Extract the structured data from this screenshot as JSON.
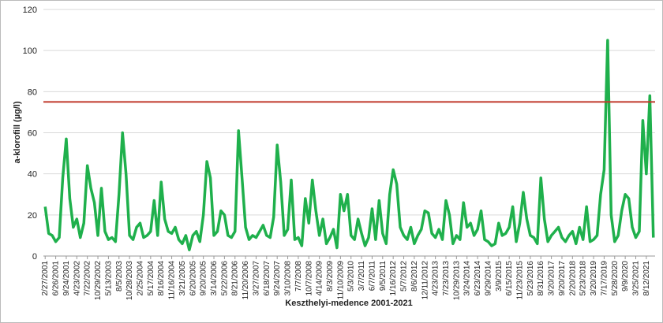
{
  "chart_data": {
    "type": "line",
    "ylabel": "a-klorofill (µg/l)",
    "xlabel": "Keszthelyi-medence 2001-2021",
    "ylim": [
      0,
      120
    ],
    "yticks": [
      0,
      20,
      40,
      60,
      80,
      100,
      120
    ],
    "grid": true,
    "threshold": 75,
    "threshold_color": "#c0392b",
    "categories": [
      "2/27/2001",
      null,
      null,
      "6/26/2001",
      null,
      null,
      "9/24/2001",
      null,
      null,
      "4/23/2002",
      null,
      null,
      "7/22/2002",
      null,
      null,
      "10/29/2002",
      null,
      null,
      "5/13/2003",
      null,
      null,
      "8/5/2003",
      null,
      null,
      "10/28/2003",
      null,
      null,
      "2/25/2004",
      null,
      null,
      "5/17/2004",
      null,
      null,
      "8/16/2004",
      null,
      null,
      "11/16/2004",
      null,
      null,
      "3/21/2005",
      null,
      null,
      "6/20/2005",
      null,
      null,
      "9/20/2005",
      null,
      null,
      "3/14/2006",
      null,
      null,
      "5/22/2006",
      null,
      null,
      "8/21/2006",
      null,
      null,
      "11/20/2006",
      null,
      null,
      "3/27/2007",
      null,
      null,
      "6/18/2007",
      null,
      null,
      "9/24/2007",
      null,
      null,
      "3/10/2008",
      null,
      null,
      "7/7/2008",
      null,
      null,
      "10/7/2008",
      null,
      null,
      "4/14/2009",
      null,
      null,
      "8/3/2009",
      null,
      null,
      "11/10/2009",
      null,
      null,
      "5/3/2010",
      null,
      null,
      "3/7/2011",
      null,
      null,
      "6/7/2011",
      null,
      null,
      "9/5/2011",
      null,
      null,
      "1/16/2012",
      null,
      null,
      "5/7/2012",
      null,
      null,
      "8/6/2012",
      null,
      null,
      "12/11/2012",
      null,
      null,
      "4/23/2013",
      null,
      null,
      "7/23/2013",
      null,
      null,
      "10/29/2013",
      null,
      null,
      "3/24/2014",
      null,
      null,
      "6/23/2014",
      null,
      null,
      "9/29/2014",
      null,
      null,
      "3/9/2015",
      null,
      null,
      "6/15/2015",
      null,
      null,
      "11/23/2015",
      null,
      null,
      "5/23/2016",
      null,
      null,
      "8/31/2016",
      null,
      null,
      "3/20/2017",
      null,
      null,
      "9/20/2017",
      null,
      null,
      "2/20/2018",
      null,
      null,
      "5/23/2018",
      null,
      null,
      "3/20/2019",
      null,
      null,
      "7/17/2019",
      null,
      null,
      "5/28/2020",
      null,
      null,
      "9/9/2020",
      null,
      null,
      "3/25/2021",
      null,
      null,
      "8/12/2021",
      null,
      null
    ],
    "series": [
      {
        "color": "#1fb04c",
        "values": [
          24,
          11,
          10,
          7,
          9,
          38,
          57,
          28,
          14,
          18,
          9,
          16,
          44,
          33,
          26,
          10,
          33,
          12,
          8,
          9,
          7,
          30,
          60,
          40,
          10,
          8,
          14,
          16,
          9,
          10,
          12,
          27,
          10,
          36,
          18,
          12,
          11,
          14,
          8,
          6,
          10,
          3,
          10,
          12,
          7,
          20,
          46,
          38,
          10,
          12,
          22,
          20,
          10,
          9,
          12,
          61,
          38,
          14,
          8,
          10,
          9,
          12,
          15,
          10,
          9,
          19,
          54,
          36,
          10,
          13,
          37,
          8,
          9,
          5,
          28,
          16,
          37,
          22,
          10,
          18,
          6,
          9,
          13,
          4,
          30,
          22,
          30,
          10,
          8,
          18,
          11,
          5,
          9,
          23,
          8,
          27,
          11,
          6,
          30,
          42,
          35,
          14,
          10,
          8,
          14,
          6,
          10,
          13,
          22,
          21,
          11,
          9,
          13,
          8,
          27,
          20,
          6,
          10,
          8,
          26,
          14,
          16,
          10,
          13,
          22,
          8,
          7,
          5,
          6,
          16,
          10,
          11,
          14,
          24,
          7,
          16,
          31,
          18,
          10,
          9,
          6,
          38,
          18,
          7,
          10,
          12,
          14,
          9,
          7,
          10,
          12,
          6,
          14,
          8,
          24,
          7,
          8,
          10,
          30,
          42,
          105,
          20,
          7,
          10,
          22,
          30,
          28,
          14,
          9,
          12,
          66,
          40,
          78,
          9
        ]
      }
    ]
  }
}
